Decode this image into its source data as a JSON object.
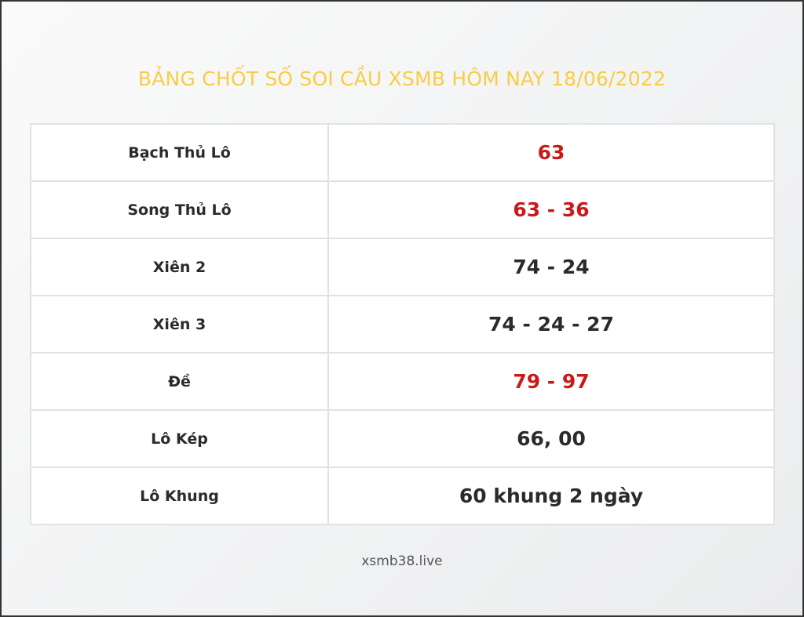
{
  "title": "BẢNG CHỐT SỐ SOI CẦU XSMB HÔM NAY 18/06/2022",
  "colors": {
    "title": "#f7cd46",
    "highlight": "#c91a1a",
    "text": "#2b2b2b"
  },
  "rows": [
    {
      "label": "Bạch Thủ Lô",
      "value": "63",
      "highlight": true
    },
    {
      "label": "Song Thủ Lô",
      "value": "63 - 36",
      "highlight": true
    },
    {
      "label": "Xiên 2",
      "value": "74 - 24",
      "highlight": false
    },
    {
      "label": "Xiên 3",
      "value": "74 - 24 - 27",
      "highlight": false
    },
    {
      "label": "Đề",
      "value": "79 - 97",
      "highlight": true
    },
    {
      "label": "Lô Kép",
      "value": "66, 00",
      "highlight": false
    },
    {
      "label": "Lô Khung",
      "value": "60 khung 2 ngày",
      "highlight": false
    }
  ],
  "footer": "xsmb38.live"
}
